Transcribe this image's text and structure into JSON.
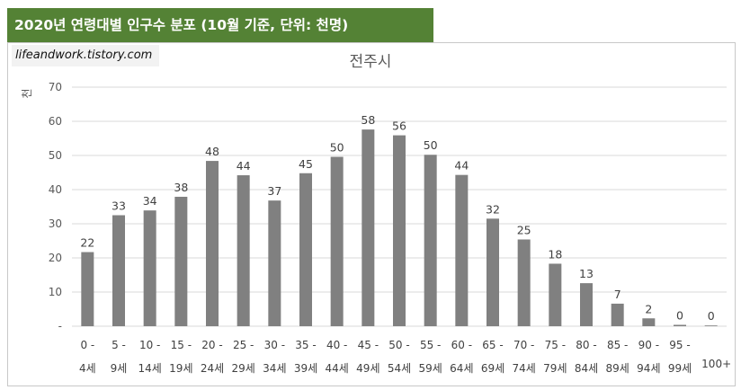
{
  "banner": {
    "title": "2020년 연령대별 인구수 분포 (10월 기준, 단위: 천명)"
  },
  "watermark": {
    "text": "lifeandwork.tistory.com"
  },
  "chart_data": {
    "type": "bar",
    "title": "전주시",
    "ylabel": "천",
    "xlabel": "",
    "ylim": [
      0,
      70
    ],
    "yticks": [
      "-",
      "10",
      "20",
      "30",
      "40",
      "50",
      "60",
      "70"
    ],
    "grid": true,
    "legend": "none",
    "bar_color": "#808080",
    "grid_color": "#d9d9d9",
    "categories": [
      [
        "0 -",
        "4세"
      ],
      [
        "5 -",
        "9세"
      ],
      [
        "10 -",
        "14세"
      ],
      [
        "15 -",
        "19세"
      ],
      [
        "20 -",
        "24세"
      ],
      [
        "25 -",
        "29세"
      ],
      [
        "30 -",
        "34세"
      ],
      [
        "35 -",
        "39세"
      ],
      [
        "40 -",
        "44세"
      ],
      [
        "45 -",
        "49세"
      ],
      [
        "50 -",
        "54세"
      ],
      [
        "55 -",
        "59세"
      ],
      [
        "60 -",
        "64세"
      ],
      [
        "65 -",
        "69세"
      ],
      [
        "70 -",
        "74세"
      ],
      [
        "75 -",
        "79세"
      ],
      [
        "80 -",
        "84세"
      ],
      [
        "85 -",
        "89세"
      ],
      [
        "90 -",
        "94세"
      ],
      [
        "95 -",
        "99세"
      ],
      [
        "100+"
      ]
    ],
    "values": [
      21.7,
      32.5,
      33.9,
      37.9,
      48.4,
      44.2,
      36.8,
      44.8,
      49.6,
      57.6,
      55.9,
      50.2,
      44.3,
      31.5,
      25.4,
      18.3,
      12.6,
      6.6,
      2.3,
      0.4,
      0.1
    ],
    "data_labels": [
      "22",
      "33",
      "34",
      "38",
      "48",
      "44",
      "37",
      "45",
      "50",
      "58",
      "56",
      "50",
      "44",
      "32",
      "25",
      "18",
      "13",
      "7",
      "2",
      "0",
      "0"
    ]
  }
}
